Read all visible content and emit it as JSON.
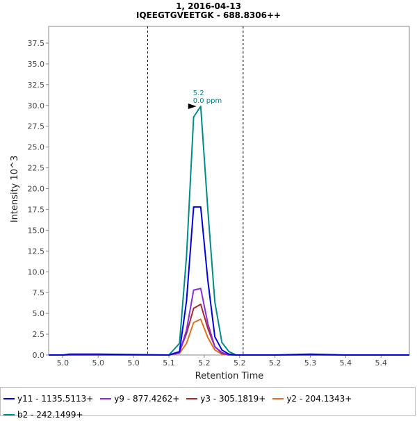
{
  "chart_data": {
    "type": "line",
    "title": "1, 2016-04-13",
    "subtitle": "IQEEGTGVEETGK - 688.8306++",
    "xlabel": "Retention Time",
    "ylabel": "Intensity 10^3",
    "xlim": [
      4.98,
      5.49
    ],
    "ylim": [
      0,
      39.5
    ],
    "x_tick_values": [
      5.0,
      5.05,
      5.1,
      5.15,
      5.2,
      5.25,
      5.3,
      5.35,
      5.4,
      5.45
    ],
    "x_tick_labels": [
      "5.0",
      "5.0",
      "5.0",
      "5.1",
      "5.2",
      "5.2",
      "5.2",
      "5.3",
      "5.4",
      "5.4"
    ],
    "y_ticks": [
      0.0,
      2.5,
      5.0,
      7.5,
      10.0,
      12.5,
      15.0,
      17.5,
      20.0,
      22.5,
      25.0,
      27.5,
      30.0,
      32.5,
      35.0,
      37.5
    ],
    "y_tick_labels": [
      "0.0",
      "2.5",
      "5.0",
      "7.5",
      "10.0",
      "12.5",
      "15.0",
      "17.5",
      "20.0",
      "22.5",
      "25.0",
      "27.5",
      "30.0",
      "32.5",
      "35.0",
      "37.5"
    ],
    "grid": false,
    "legend_position": "bottom",
    "boundaries": [
      5.12,
      5.255
    ],
    "x": [
      4.98,
      5.0,
      5.01,
      5.05,
      5.1,
      5.15,
      5.165,
      5.175,
      5.185,
      5.195,
      5.205,
      5.215,
      5.225,
      5.235,
      5.245,
      5.255,
      5.27,
      5.3,
      5.35,
      5.4,
      5.45,
      5.49
    ],
    "series": [
      {
        "name": "y11 - 1135.5113+",
        "color": "#0000e0",
        "values": [
          0,
          0,
          0.1,
          0.1,
          0.05,
          0,
          0.4,
          6.5,
          17.8,
          17.8,
          9.0,
          2.2,
          0.6,
          0.1,
          0,
          0,
          0,
          0,
          0.1,
          0,
          0,
          0
        ]
      },
      {
        "name": "y9 - 877.4262+",
        "color": "#8a2be2",
        "values": [
          0,
          0,
          0,
          0,
          0,
          0,
          0.3,
          3.0,
          7.8,
          8.0,
          3.8,
          1.0,
          0.3,
          0,
          0,
          0,
          0,
          0,
          0,
          0,
          0,
          0
        ]
      },
      {
        "name": "y3 - 305.1819+",
        "color": "#a52a2a",
        "values": [
          0,
          0,
          0,
          0,
          0,
          0,
          0.4,
          2.6,
          5.6,
          6.1,
          3.2,
          1.0,
          0.2,
          0,
          0,
          0,
          0,
          0,
          0,
          0,
          0,
          0
        ]
      },
      {
        "name": "y2 - 204.1343+",
        "color": "#e07020",
        "values": [
          0,
          0,
          0,
          0,
          0,
          0,
          0.2,
          1.4,
          3.9,
          4.3,
          2.1,
          0.6,
          0.1,
          0,
          0,
          0,
          0,
          0,
          0,
          0,
          0,
          0
        ]
      },
      {
        "name": "b2 - 242.1499+",
        "color": "#008b8b",
        "values": [
          0,
          0,
          0,
          0,
          0,
          0,
          1.4,
          11.9,
          28.6,
          29.9,
          17.5,
          6.4,
          1.5,
          0.4,
          0,
          0,
          0,
          0,
          0,
          0,
          0,
          0
        ]
      }
    ],
    "annotation": {
      "line1": "5.2",
      "line2": "0.0 ppm",
      "x": 5.19,
      "y": 29.9
    }
  }
}
